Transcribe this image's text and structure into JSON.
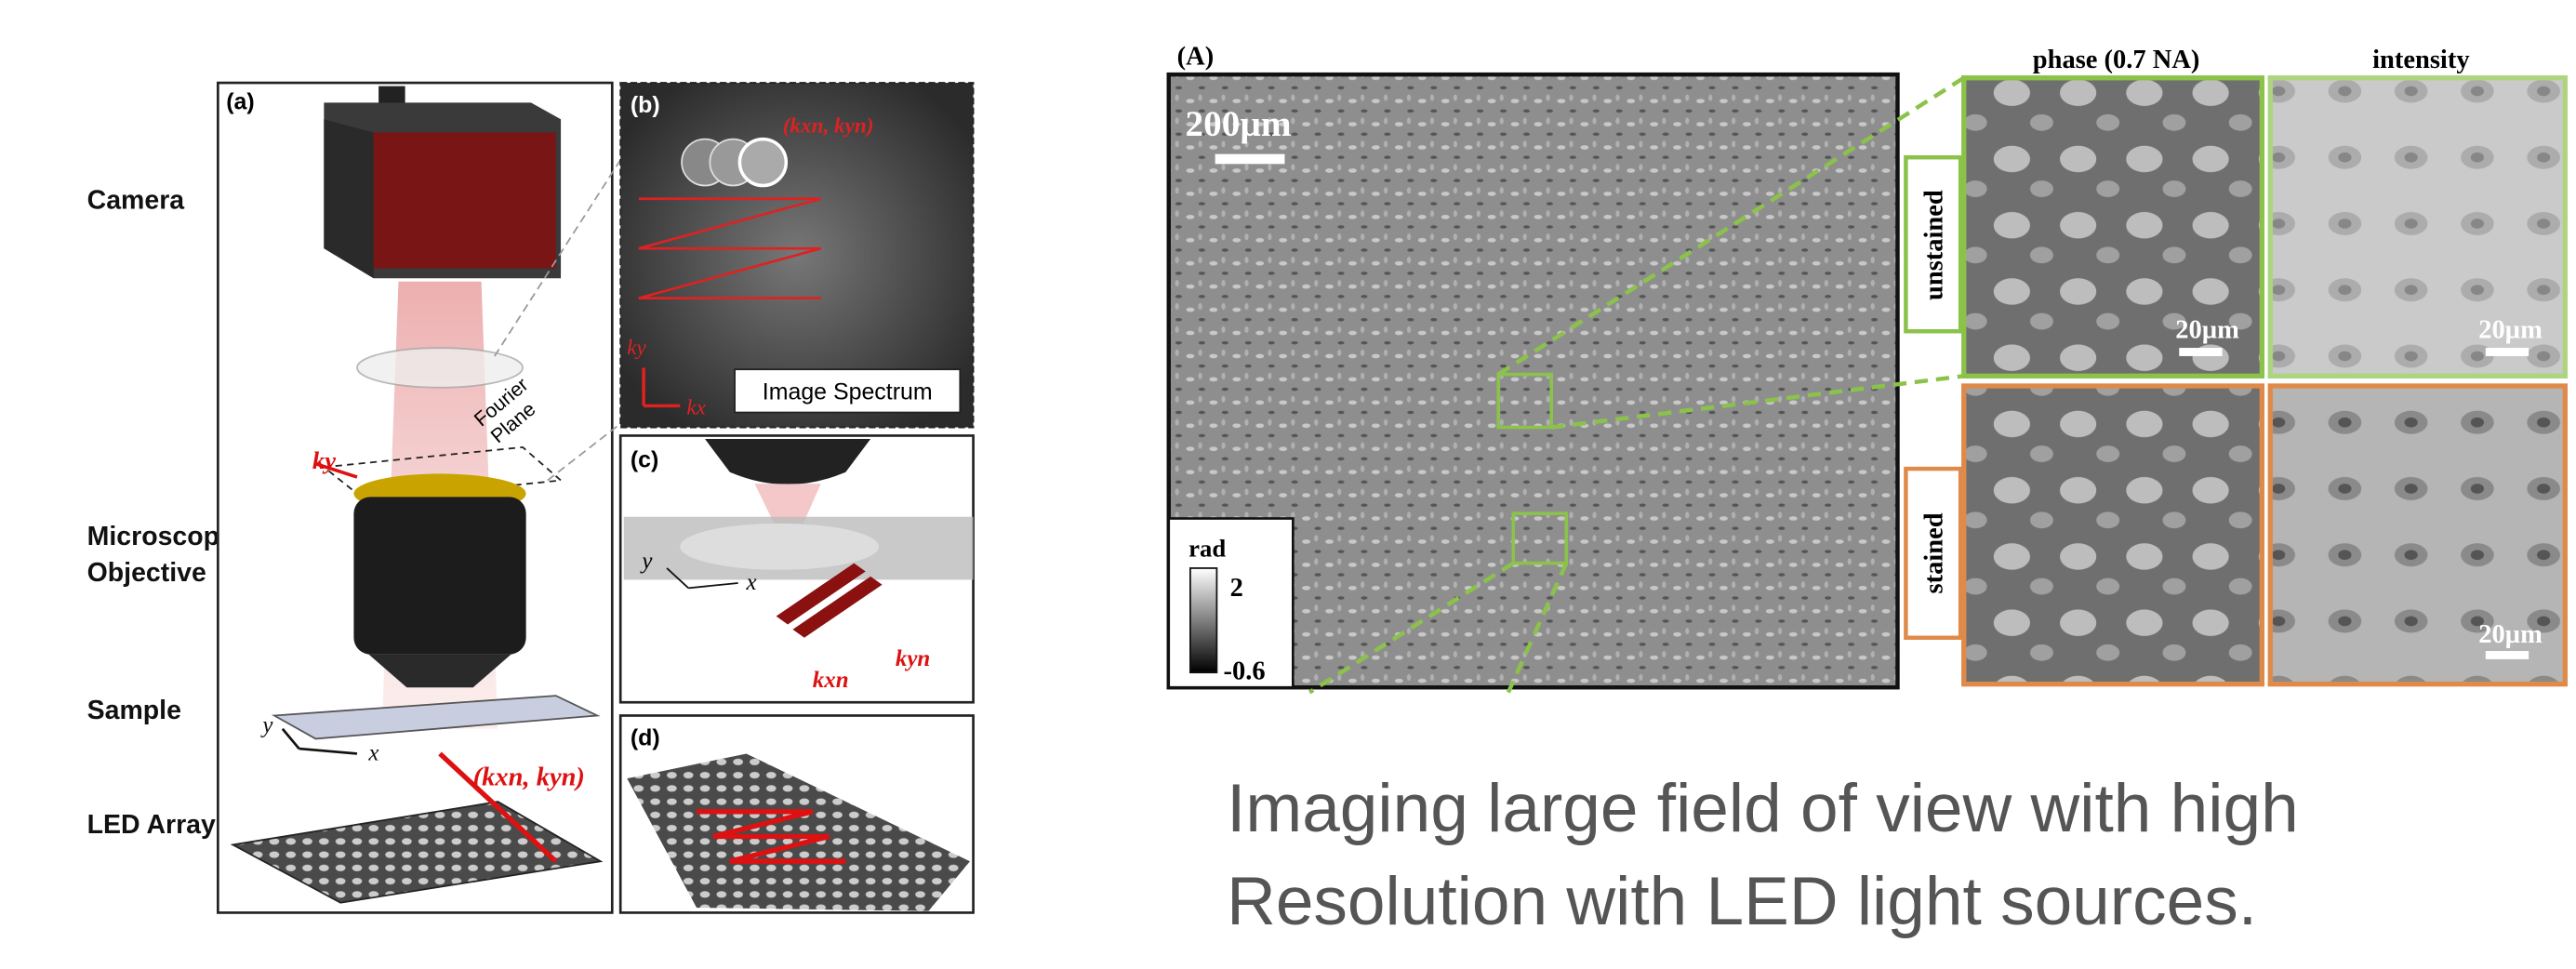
{
  "figure_left": {
    "panels": [
      "(a)",
      "(b)",
      "(c)",
      "(d)"
    ],
    "labels": {
      "camera": "Camera",
      "microscope": "Microscope",
      "objective": "Objective",
      "sample": "Sample",
      "led_array": "LED Array"
    },
    "fourier_plane": [
      "Fourier",
      "Plane"
    ],
    "spectrum_label": "Image Spectrum",
    "wavevector": "(kxn, kyn)",
    "axes": {
      "kx": "kx",
      "ky": "ky",
      "x": "x",
      "y": "y",
      "kxn": "kxn",
      "kyn": "kyn"
    }
  },
  "figure_right": {
    "panel": "(A)",
    "scale_main": "200µm",
    "colorbar": {
      "unit": "rad",
      "max": "2",
      "min": "-0.6"
    },
    "columns": [
      "phase (0.7 NA)",
      "intensity"
    ],
    "rows": [
      "unstained",
      "stained"
    ],
    "scale_small": [
      "20µm",
      "20µm",
      "20µm"
    ]
  },
  "caption": {
    "lines": [
      "Imaging large field of view with high",
      "Resolution with LED light sources."
    ]
  }
}
